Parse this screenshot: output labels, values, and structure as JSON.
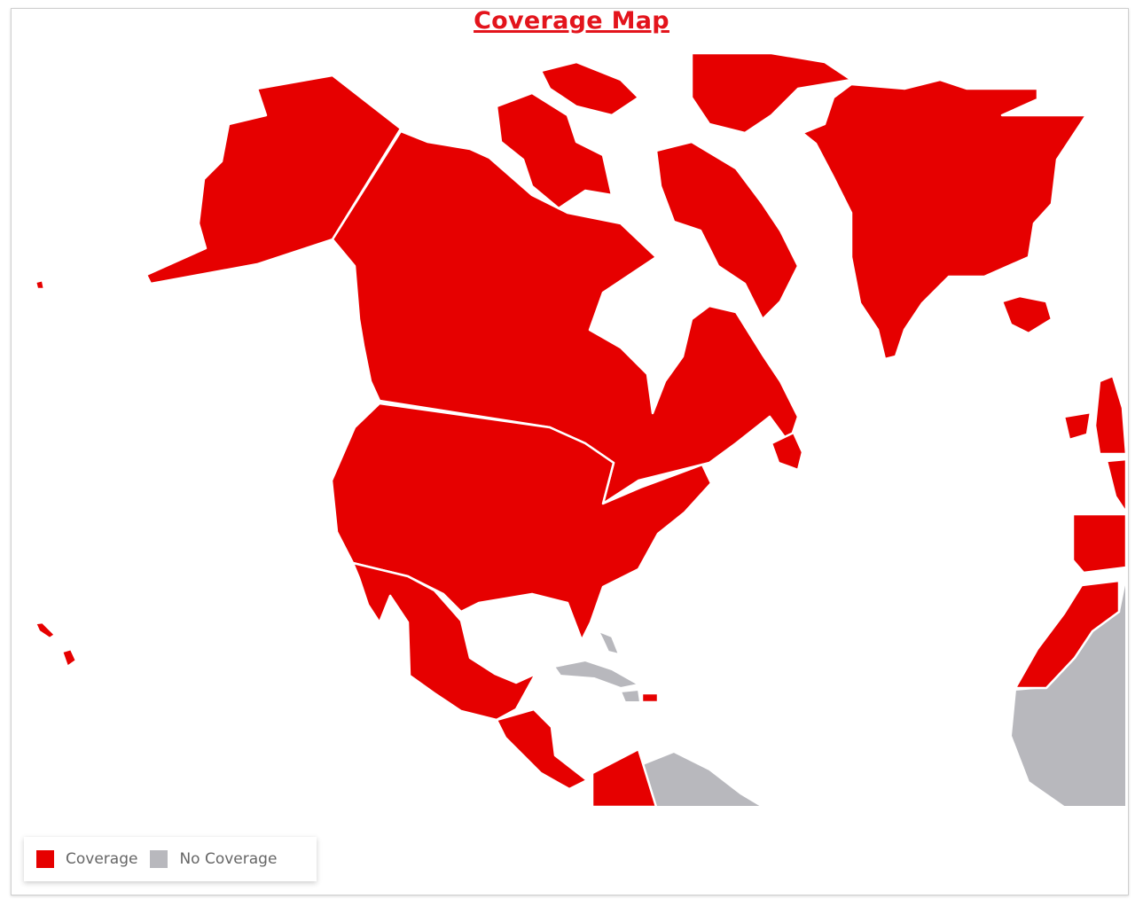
{
  "title": "Coverage Map",
  "legend": {
    "items": [
      {
        "label": "Coverage",
        "color": "#e60000"
      },
      {
        "label": "No Coverage",
        "color": "#b8b8bd"
      }
    ]
  },
  "regions": {
    "coverage": [
      "Alaska",
      "Canada",
      "United States",
      "Mexico",
      "Central America",
      "Greenland",
      "Iceland",
      "Hawaii",
      "United Kingdom",
      "Ireland",
      "Spain",
      "Portugal",
      "France",
      "Morocco",
      "Colombia",
      "Puerto Rico"
    ],
    "no_coverage": [
      "Cuba",
      "Bahamas",
      "Venezuela",
      "West Africa"
    ]
  }
}
